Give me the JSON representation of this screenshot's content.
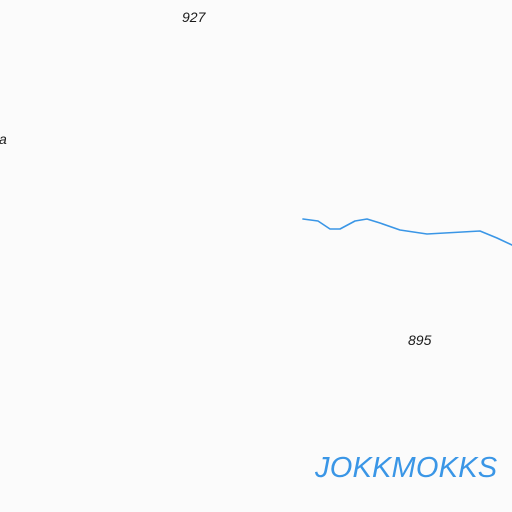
{
  "map": {
    "labels": {
      "elevation_top": "927",
      "elevation_right": "895",
      "place_edge": "a",
      "region": "JOKKMOKKS"
    },
    "colors": {
      "background": "#fbfbfb",
      "water": "#3a96e6",
      "region_text": "#3a96e6",
      "label_text": "#1a1a1a"
    },
    "features": {
      "stream": "water-line"
    }
  }
}
